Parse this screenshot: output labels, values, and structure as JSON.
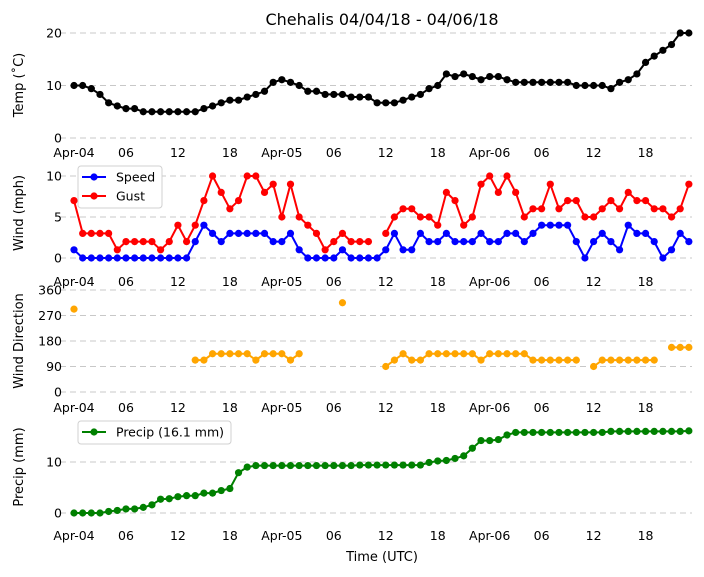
{
  "chart_data": [
    {
      "type": "line",
      "title": "Chehalis 04/04/18 - 04/06/18",
      "ylabel": "Temp (˚C)",
      "ylim": [
        0,
        20
      ],
      "yticks": [
        "0",
        "10",
        "20"
      ],
      "ytick_values": [
        0,
        10,
        20
      ],
      "xticks": [
        "Apr-04",
        "06",
        "12",
        "18",
        "Apr-05",
        "06",
        "12",
        "18",
        "Apr-06",
        "06",
        "12",
        "18"
      ],
      "grid": true,
      "series": [
        {
          "name": "Temp",
          "color": "#000000",
          "values": [
            10,
            10,
            9.4,
            8.3,
            6.7,
            6.1,
            5.6,
            5.6,
            5,
            5,
            5,
            5,
            5,
            5,
            5,
            5.6,
            6.1,
            6.7,
            7.2,
            7.2,
            7.8,
            8.3,
            8.9,
            10.6,
            11.1,
            10.6,
            10,
            8.9,
            8.9,
            8.3,
            8.3,
            8.3,
            7.8,
            7.8,
            7.8,
            6.7,
            6.7,
            6.7,
            7.2,
            7.8,
            8.3,
            9.4,
            10,
            12.2,
            11.7,
            12.2,
            11.7,
            11.1,
            11.7,
            11.7,
            11.1,
            10.6,
            10.6,
            10.6,
            10.6,
            10.6,
            10.6,
            10.6,
            10,
            10,
            10,
            10,
            9.4,
            10.6,
            11.1,
            12.2,
            14.4,
            15.6,
            16.7,
            17.8,
            20,
            20
          ]
        }
      ]
    },
    {
      "type": "line",
      "ylabel": "Wind (mph)",
      "ylim": [
        0,
        10
      ],
      "yticks": [
        "0",
        "5",
        "10"
      ],
      "ytick_values": [
        0,
        5,
        10
      ],
      "xticks": [
        "Apr-04",
        "06",
        "12",
        "18",
        "Apr-05",
        "06",
        "12",
        "18",
        "Apr-06",
        "06",
        "12",
        "18"
      ],
      "grid": true,
      "legend": "top-left",
      "series": [
        {
          "name": "Speed",
          "color": "#0000ff",
          "values": [
            1,
            0,
            0,
            0,
            0,
            0,
            0,
            0,
            0,
            0,
            0,
            0,
            0,
            0,
            2,
            4,
            3,
            2,
            3,
            3,
            3,
            3,
            3,
            2,
            2,
            3,
            1,
            0,
            0,
            0,
            0,
            1,
            0,
            0,
            0,
            0,
            1,
            3,
            1,
            1,
            3,
            2,
            2,
            3,
            2,
            2,
            2,
            3,
            2,
            2,
            3,
            3,
            2,
            3,
            4,
            4,
            4,
            4,
            2,
            0,
            2,
            3,
            2,
            1,
            4,
            3,
            3,
            2,
            0,
            1,
            3,
            2
          ]
        },
        {
          "name": "Gust",
          "color": "#ff0000",
          "values": [
            7,
            3,
            3,
            3,
            3,
            1,
            2,
            2,
            2,
            2,
            1,
            2,
            4,
            2,
            4,
            7,
            10,
            8,
            6,
            7,
            10,
            10,
            8,
            9,
            5,
            9,
            5,
            4,
            3,
            1,
            2,
            3,
            2,
            2,
            2,
            null,
            3,
            5,
            6,
            6,
            5,
            5,
            4,
            8,
            7,
            4,
            5,
            9,
            10,
            8,
            10,
            8,
            5,
            6,
            6,
            9,
            6,
            7,
            7,
            5,
            5,
            6,
            7,
            6,
            8,
            7,
            7,
            6,
            6,
            5,
            6,
            9
          ]
        }
      ]
    },
    {
      "type": "line",
      "ylabel": "Wind Direction",
      "ylim": [
        0,
        360
      ],
      "yticks": [
        "0",
        "90",
        "180",
        "270",
        "360"
      ],
      "ytick_values": [
        0,
        90,
        180,
        270,
        360
      ],
      "xticks": [
        "Apr-04",
        "06",
        "12",
        "18",
        "Apr-05",
        "06",
        "12",
        "18",
        "Apr-06",
        "06",
        "12",
        "18"
      ],
      "grid": true,
      "series": [
        {
          "name": "Direction",
          "color": "#ffa500",
          "values": [
            292.5,
            null,
            null,
            null,
            null,
            null,
            null,
            null,
            null,
            null,
            null,
            null,
            null,
            null,
            112.5,
            112.5,
            135,
            135,
            135,
            135,
            135,
            112.5,
            135,
            135,
            135,
            112.5,
            135,
            null,
            null,
            null,
            null,
            315,
            null,
            null,
            null,
            null,
            90,
            112.5,
            135,
            112.5,
            112.5,
            135,
            135,
            135,
            135,
            135,
            135,
            112.5,
            135,
            135,
            135,
            135,
            135,
            112.5,
            112.5,
            112.5,
            112.5,
            112.5,
            112.5,
            null,
            90,
            112.5,
            112.5,
            112.5,
            112.5,
            112.5,
            112.5,
            112.5,
            null,
            157.5,
            157.5,
            157.5
          ]
        }
      ]
    },
    {
      "type": "line",
      "ylabel": "Precip (mm)",
      "xlabel": "Time (UTC)",
      "ylim": [
        0,
        16.1
      ],
      "yticks": [
        "0",
        "10"
      ],
      "ytick_values": [
        0,
        10
      ],
      "xticks": [
        "Apr-04",
        "06",
        "12",
        "18",
        "Apr-05",
        "06",
        "12",
        "18",
        "Apr-06",
        "06",
        "12",
        "18"
      ],
      "grid": true,
      "legend": "top-left",
      "series": [
        {
          "name": "Precip (16.1 mm)",
          "color": "#008000",
          "values": [
            0,
            0,
            0,
            0,
            0.3,
            0.5,
            0.8,
            0.8,
            1.1,
            1.6,
            2.7,
            2.8,
            3.2,
            3.4,
            3.4,
            3.9,
            3.9,
            4.4,
            4.8,
            7.9,
            9.0,
            9.3,
            9.3,
            9.3,
            9.3,
            9.3,
            9.3,
            9.3,
            9.3,
            9.3,
            9.3,
            9.3,
            9.3,
            9.4,
            9.4,
            9.4,
            9.4,
            9.4,
            9.4,
            9.4,
            9.4,
            9.9,
            10.2,
            10.3,
            10.7,
            11.2,
            12.7,
            14.2,
            14.2,
            14.4,
            15.3,
            15.8,
            15.8,
            15.8,
            15.8,
            15.8,
            15.8,
            15.8,
            15.8,
            15.8,
            15.8,
            15.8,
            16.0,
            16.0,
            16.0,
            16.0,
            16.0,
            16.0,
            16.0,
            16.0,
            16.0,
            16.1
          ]
        }
      ]
    }
  ]
}
